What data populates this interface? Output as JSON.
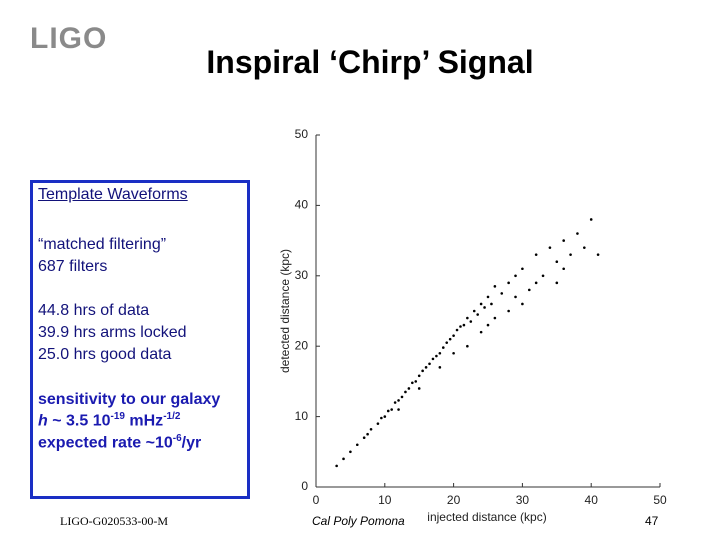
{
  "header": {
    "logo": "LIGO",
    "title": "Inspiral ‘Chirp’ Signal"
  },
  "textbox": {
    "heading": "Template Waveforms",
    "filters": [
      "“matched filtering”",
      "687 filters"
    ],
    "data": [
      "44.8 hrs of data",
      "39.9 hrs arms locked",
      "25.0 hrs good data"
    ],
    "sensitivity": "sensitivity  to our galaxy",
    "strain": [
      "h",
      " ~ 3.5 10",
      "-19",
      " mHz",
      "-1/2"
    ],
    "rate": [
      "expected rate ~10",
      "-6",
      "/yr"
    ]
  },
  "footer": {
    "doc_id": "LIGO-G020533-00-M",
    "place": "Cal Poly Pomona",
    "page": "47"
  },
  "chart_data": {
    "type": "scatter",
    "xlabel": "injected distance (kpc)",
    "ylabel": "detected distance (kpc)",
    "xlim": [
      0,
      50
    ],
    "ylim": [
      0,
      50
    ],
    "xticks": [
      0,
      10,
      20,
      30,
      40,
      50
    ],
    "yticks": [
      0,
      10,
      20,
      30,
      40,
      50
    ],
    "color": "#000000",
    "x": [
      3,
      4,
      5,
      6,
      7,
      7.5,
      8,
      9,
      9.5,
      10,
      10.5,
      11,
      11.5,
      12,
      12.5,
      13,
      13.5,
      14,
      14.5,
      15,
      15.5,
      16,
      16.5,
      17,
      17.5,
      18,
      18.5,
      19,
      19.5,
      20,
      20.5,
      21,
      21.5,
      22,
      22.5,
      23,
      23.5,
      24,
      24.5,
      25,
      25.5,
      26,
      27,
      28,
      29,
      30,
      31,
      32,
      33,
      34,
      35,
      36,
      37,
      38,
      39,
      40,
      20,
      25,
      30,
      35,
      15,
      22,
      28,
      26,
      24,
      32,
      29,
      36,
      18,
      12,
      41
    ],
    "y": [
      3,
      4,
      5,
      6,
      7,
      7.5,
      8.2,
      9,
      9.8,
      10,
      10.8,
      11,
      12,
      12.3,
      12.8,
      13.5,
      14,
      14.8,
      15,
      15.8,
      16.5,
      17,
      17.5,
      18.2,
      18.6,
      19,
      19.8,
      20.5,
      21,
      21.5,
      22.3,
      22.8,
      23,
      24,
      23.5,
      25,
      24.5,
      26,
      25.5,
      27,
      26,
      28.5,
      27.5,
      29,
      30,
      31,
      28,
      33,
      30,
      34,
      32,
      35,
      33,
      36,
      34,
      38,
      19,
      23,
      26,
      29,
      14,
      20,
      25,
      24,
      22,
      29,
      27,
      31,
      17,
      11,
      33
    ]
  }
}
